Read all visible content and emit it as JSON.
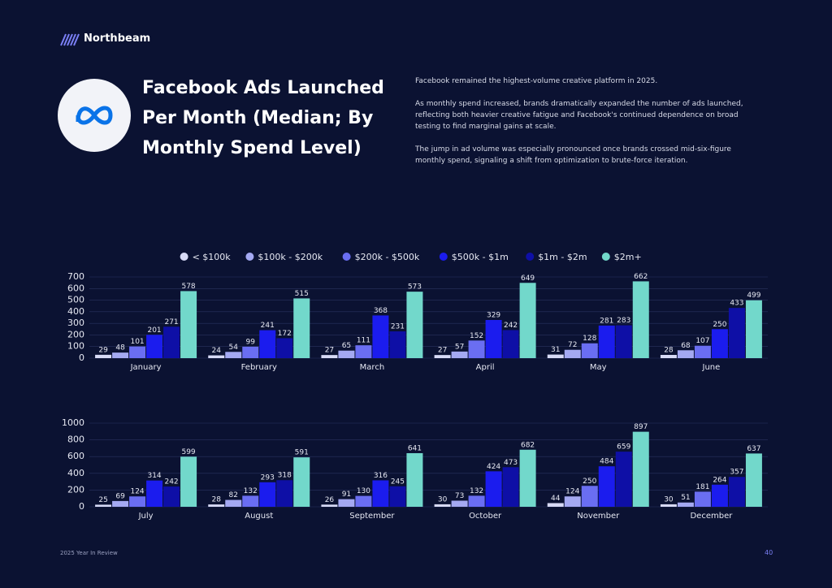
{
  "brand": "Northbeam",
  "title": "Facebook Ads Launched Per Month (Median; By Monthly Spend Level)",
  "paragraphs": [
    "Facebook remained the highest-volume creative platform in 2025.",
    "As monthly spend increased, brands dramatically expanded the number of ads launched, reflecting both heavier creative fatigue and Facebook's continued dependence on broad testing to find marginal gains at scale.",
    "The jump in ad volume was especially pronounced once brands crossed mid-six-figure monthly spend, signaling a shift from optimization to brute-force iteration."
  ],
  "footer": {
    "left": "2025 Year In Review",
    "page": "40"
  },
  "chart_data": [
    {
      "type": "bar",
      "legend": "top",
      "grid": true,
      "categories": [
        "January",
        "February",
        "March",
        "April",
        "May",
        "June"
      ],
      "series": [
        {
          "name": "< $100k",
          "color": "#d7daf6",
          "values": [
            29,
            24,
            27,
            27,
            31,
            28
          ]
        },
        {
          "name": "$100k - $200k",
          "color": "#a4a9f2",
          "values": [
            48,
            54,
            65,
            57,
            72,
            68
          ]
        },
        {
          "name": "$200k - $500k",
          "color": "#6a6ef2",
          "values": [
            101,
            99,
            111,
            152,
            128,
            107
          ]
        },
        {
          "name": "$500k - $1m",
          "color": "#1b1cee",
          "values": [
            201,
            241,
            368,
            329,
            281,
            250
          ]
        },
        {
          "name": "$1m - $2m",
          "color": "#0e0fa6",
          "values": [
            271,
            172,
            231,
            242,
            283,
            433
          ]
        },
        {
          "name": "$2m+",
          "color": "#72d8cb",
          "values": [
            578,
            515,
            573,
            649,
            662,
            499
          ]
        }
      ],
      "ylim": [
        0,
        700
      ],
      "yticks": [
        0,
        100,
        200,
        300,
        400,
        500,
        600,
        700
      ]
    },
    {
      "type": "bar",
      "grid": true,
      "categories": [
        "July",
        "August",
        "September",
        "October",
        "November",
        "December"
      ],
      "series": [
        {
          "color": "#d7daf6",
          "values": [
            25,
            28,
            26,
            30,
            44,
            30
          ]
        },
        {
          "color": "#a4a9f2",
          "values": [
            69,
            82,
            91,
            73,
            124,
            51
          ]
        },
        {
          "color": "#6a6ef2",
          "values": [
            124,
            132,
            130,
            132,
            250,
            181
          ]
        },
        {
          "color": "#1b1cee",
          "values": [
            314,
            293,
            316,
            424,
            484,
            264
          ]
        },
        {
          "color": "#0e0fa6",
          "values": [
            242,
            318,
            245,
            473,
            659,
            357
          ]
        },
        {
          "color": "#72d8cb",
          "values": [
            599,
            591,
            641,
            682,
            897,
            637
          ]
        }
      ],
      "ylim": [
        0,
        1000
      ],
      "yticks": [
        0,
        200,
        400,
        600,
        800,
        1000
      ]
    }
  ]
}
